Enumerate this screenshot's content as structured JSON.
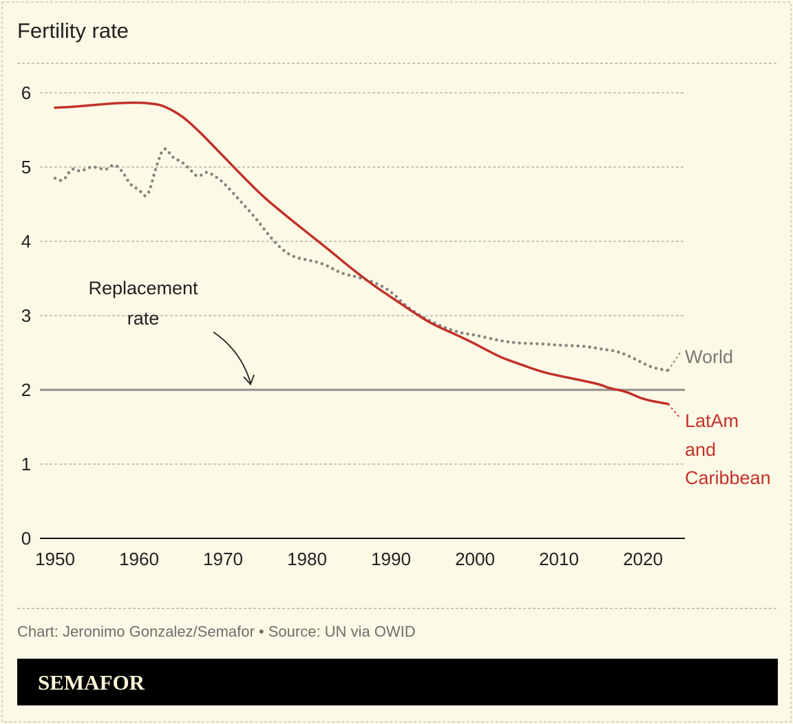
{
  "chart_data": {
    "type": "line",
    "title": "Fertility rate",
    "xlabel": "",
    "ylabel": "",
    "xlim": [
      1950,
      2024.5
    ],
    "ylim": [
      0,
      6
    ],
    "x_ticks": [
      "1950",
      "1960",
      "1970",
      "1980",
      "1990",
      "2000",
      "2010",
      "2020"
    ],
    "x_tick_values": [
      1950,
      1960,
      1970,
      1980,
      1990,
      2000,
      2010,
      2020
    ],
    "y_ticks": [
      "0",
      "1",
      "2",
      "3",
      "4",
      "5",
      "6"
    ],
    "y_tick_values": [
      0,
      1,
      2,
      3,
      4,
      5,
      6
    ],
    "grid": true,
    "reference_line": {
      "value": 2,
      "label_line1": "Replacement",
      "label_line2": "rate",
      "color": "#8f8f8a"
    },
    "series": [
      {
        "name": "LatAm and Caribbean",
        "label_lines": [
          "LatAm",
          "and",
          "Caribbean"
        ],
        "color": "#c2312a",
        "style": "solid",
        "x": [
          1950,
          1952,
          1955,
          1957,
          1960,
          1962,
          1963,
          1965,
          1967,
          1970,
          1973,
          1975,
          1978,
          1980,
          1983,
          1985,
          1988,
          1990,
          1993,
          1995,
          1998,
          2000,
          2003,
          2005,
          2008,
          2010,
          2013,
          2015,
          2016,
          2018,
          2020,
          2023
        ],
        "y": [
          5.8,
          5.81,
          5.84,
          5.86,
          5.87,
          5.85,
          5.82,
          5.7,
          5.5,
          5.15,
          4.8,
          4.58,
          4.3,
          4.12,
          3.85,
          3.66,
          3.4,
          3.25,
          3.02,
          2.88,
          2.73,
          2.62,
          2.44,
          2.36,
          2.24,
          2.19,
          2.12,
          2.07,
          2.02,
          1.98,
          1.87,
          1.81
        ]
      },
      {
        "name": "World",
        "label_lines": [
          "World"
        ],
        "color": "#85847f",
        "style": "dotted",
        "x": [
          1950,
          1951,
          1952,
          1953,
          1954,
          1955,
          1956,
          1957,
          1958,
          1959,
          1960,
          1961,
          1962,
          1963,
          1964,
          1965,
          1966,
          1967,
          1968,
          1969,
          1970,
          1972,
          1974,
          1976,
          1978,
          1980,
          1982,
          1984,
          1986,
          1988,
          1990,
          1992,
          1995,
          1998,
          2000,
          2003,
          2005,
          2008,
          2010,
          2013,
          2015,
          2017,
          2019,
          2021,
          2023
        ],
        "y": [
          4.85,
          4.8,
          5.0,
          4.93,
          5.0,
          5.0,
          4.95,
          5.05,
          4.95,
          4.75,
          4.7,
          4.56,
          5.0,
          5.3,
          5.12,
          5.08,
          4.98,
          4.85,
          4.95,
          4.88,
          4.8,
          4.55,
          4.3,
          4.0,
          3.8,
          3.75,
          3.7,
          3.57,
          3.52,
          3.45,
          3.33,
          3.1,
          2.9,
          2.77,
          2.74,
          2.66,
          2.63,
          2.62,
          2.6,
          2.59,
          2.55,
          2.52,
          2.42,
          2.3,
          2.26
        ]
      }
    ]
  },
  "footer": {
    "credit": "Chart: Jeronimo Gonzalez/Semafor • Source: UN via OWID",
    "brand": "SEMAFOR"
  }
}
